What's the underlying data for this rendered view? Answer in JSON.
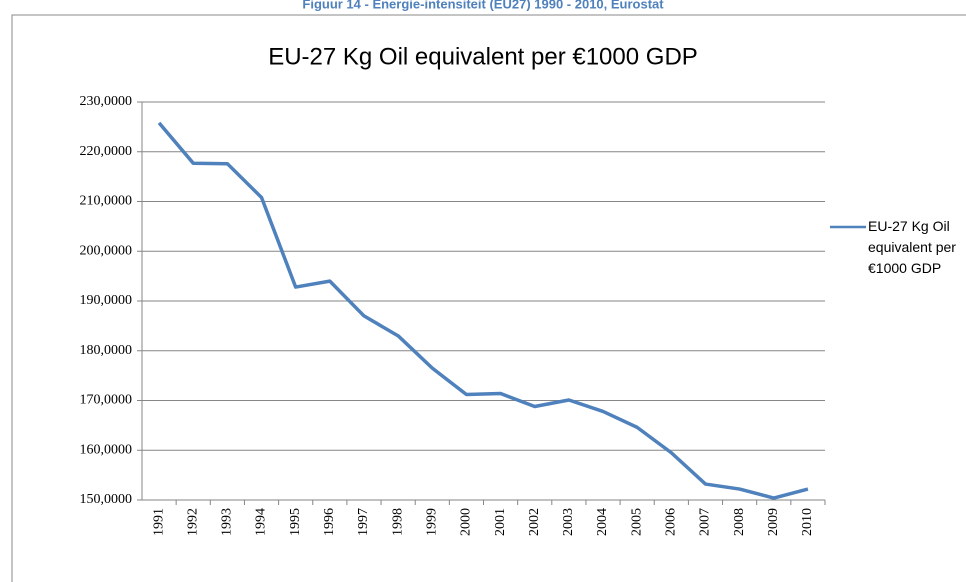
{
  "caption": "Figuur 14 - Energie-intensiteit (EU27) 1990 - 2010, Eurostat",
  "chart_data": {
    "type": "line",
    "title": "EU-27 Kg Oil equivalent per €1000 GDP",
    "categories": [
      "1991",
      "1992",
      "1993",
      "1994",
      "1995",
      "1996",
      "1997",
      "1998",
      "1999",
      "2000",
      "2001",
      "2002",
      "2003",
      "2004",
      "2005",
      "2006",
      "2007",
      "2008",
      "2009",
      "2010"
    ],
    "series": [
      {
        "name": "EU-27 Kg Oil equivalent per €1000 GDP",
        "color": "#4f81bd",
        "values": [
          225.8,
          217.7,
          217.6,
          210.8,
          192.8,
          194.0,
          187.0,
          183.0,
          176.5,
          171.2,
          171.4,
          168.8,
          170.1,
          167.8,
          164.6,
          159.5,
          153.2,
          152.2,
          150.4,
          152.2
        ]
      }
    ],
    "ylim": [
      150,
      230
    ],
    "yticks": [
      {
        "value": 150,
        "label": "150,0000"
      },
      {
        "value": 160,
        "label": "160,0000"
      },
      {
        "value": 170,
        "label": "170,0000"
      },
      {
        "value": 180,
        "label": "180,0000"
      },
      {
        "value": 190,
        "label": "190,0000"
      },
      {
        "value": 200,
        "label": "200,0000"
      },
      {
        "value": 210,
        "label": "210,0000"
      },
      {
        "value": 220,
        "label": "220,0000"
      },
      {
        "value": 230,
        "label": "230,0000"
      }
    ],
    "grid": true,
    "legend": "right"
  }
}
